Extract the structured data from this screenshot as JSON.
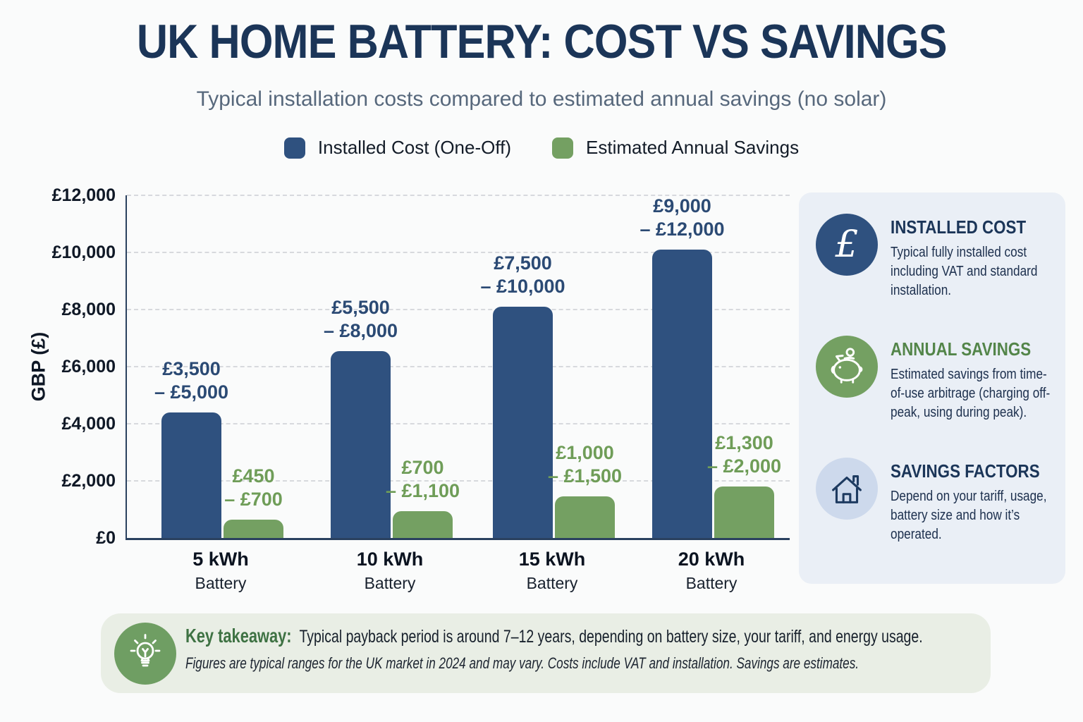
{
  "title": "UK HOME BATTERY: COST VS SAVINGS",
  "subtitle": "Typical installation costs compared to estimated annual savings (no solar)",
  "colors": {
    "title_text": "#1b3558",
    "subtitle_text": "#57687c",
    "navy": "#2f517f",
    "green": "#74a062",
    "sidebar_bg": "#eaeff6",
    "takeaway_bg": "#e9eee5",
    "gridline": "#d7d9dd"
  },
  "legend": [
    {
      "label": "Installed Cost (One-Off)",
      "color": "#2f517f"
    },
    {
      "label": "Estimated Annual Savings",
      "color": "#74a062"
    }
  ],
  "chart_data": {
    "type": "bar",
    "title": "UK HOME BATTERY: COST VS SAVINGS",
    "subtitle": "Typical installation costs compared to estimated annual savings (no solar)",
    "ylabel": "GBP (£)",
    "ylim": [
      0,
      12000
    ],
    "grid": "horizontal-dashed",
    "legend_position": "top-center",
    "yticks": [
      {
        "value": 0,
        "label": "£0"
      },
      {
        "value": 2000,
        "label": "£2,000"
      },
      {
        "value": 4000,
        "label": "£4,000"
      },
      {
        "value": 6000,
        "label": "£6,000"
      },
      {
        "value": 8000,
        "label": "£8,000"
      },
      {
        "value": 10000,
        "label": "£10,000"
      },
      {
        "value": 12000,
        "label": "£12,000"
      }
    ],
    "categories": [
      {
        "label": "5 kWh",
        "sub": "Battery"
      },
      {
        "label": "10 kWh",
        "sub": "Battery"
      },
      {
        "label": "15 kWh",
        "sub": "Battery"
      },
      {
        "label": "20 kWh",
        "sub": "Battery"
      }
    ],
    "series": [
      {
        "name": "Installed Cost (One-Off)",
        "color": "#2f517f",
        "label_color": "#2b4a74",
        "values": [
          4400,
          6550,
          8100,
          10100
        ],
        "range_labels": [
          [
            "£3,500",
            "– £5,000"
          ],
          [
            "£5,500",
            "– £8,000"
          ],
          [
            "£7,500",
            "– £10,000"
          ],
          [
            "£9,000",
            "– £12,000"
          ]
        ]
      },
      {
        "name": "Estimated Annual Savings",
        "color": "#74a062",
        "label_color": "#6f9d58",
        "values": [
          650,
          950,
          1450,
          1800
        ],
        "range_labels": [
          [
            "£450",
            "– £700"
          ],
          [
            "£700",
            "– £1,100"
          ],
          [
            "£1,000",
            "– £1,500"
          ],
          [
            "£1,300",
            "– £2,000"
          ]
        ]
      }
    ]
  },
  "sidebar": {
    "items": [
      {
        "icon": "pound-icon",
        "glyph": "£",
        "icon_bg": "#2f517f",
        "heading": "INSTALLED COST",
        "heading_color": "#1b3558",
        "body": "Typical fully installed cost including VAT and standard installation."
      },
      {
        "icon": "piggy-bank-icon",
        "icon_bg": "#74a062",
        "heading": "ANNUAL SAVINGS",
        "heading_color": "#538549",
        "body": "Estimated savings from time-of-use arbitrage (charging off-peak, using during peak)."
      },
      {
        "icon": "house-icon",
        "icon_bg": "#cdd9ec",
        "heading": "SAVINGS FACTORS",
        "heading_color": "#1b3558",
        "body": "Depend on your tariff, usage, battery size and how it’s operated."
      }
    ]
  },
  "takeaway": {
    "icon": "lightbulb-icon",
    "icon_bg": "#6f9e63",
    "heading": "Key takeaway:",
    "heading_color": "#3e7243",
    "text": "Typical payback period is around 7–12 years, depending on battery size, your tariff, and energy usage.",
    "note": "Figures are typical ranges for the UK market in 2024 and may vary. Costs include VAT and installation. Savings are estimates."
  }
}
